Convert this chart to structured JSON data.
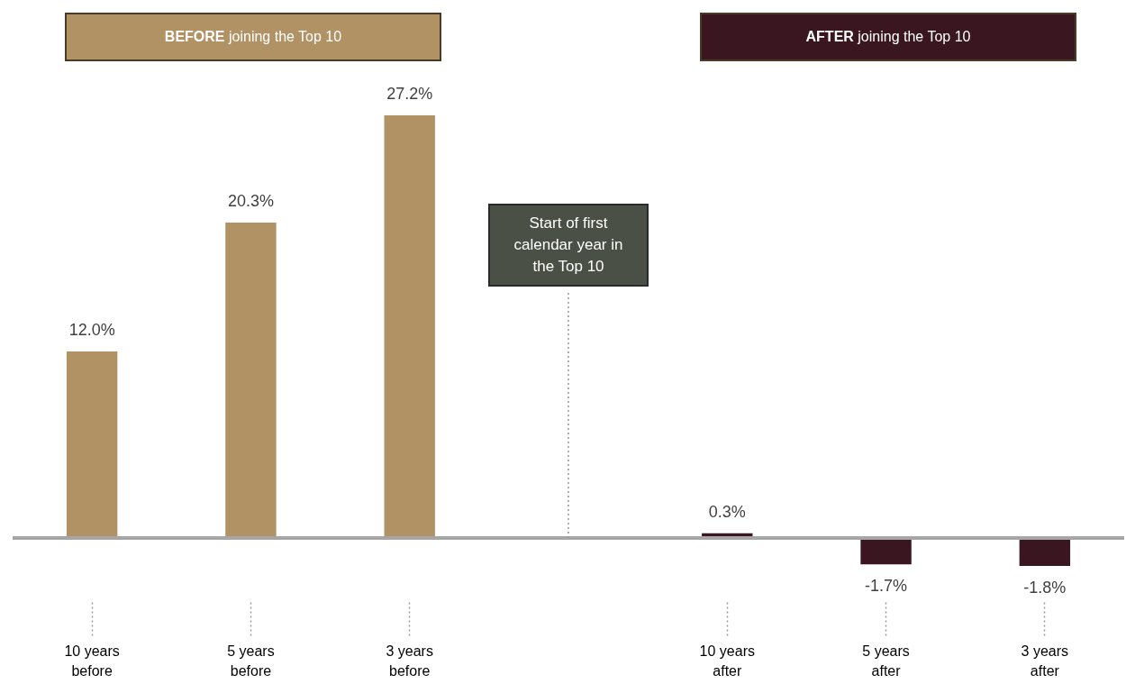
{
  "chart_data": {
    "type": "bar",
    "categories": [
      "10 years before",
      "5 years before",
      "3 years before",
      null,
      "10 years after",
      "5 years after",
      "3 years after"
    ],
    "values": [
      12.0,
      20.3,
      27.2,
      null,
      0.3,
      -1.7,
      -1.8
    ],
    "colors": [
      "#b09265",
      "#b09265",
      "#b09265",
      "#b09265",
      "#3a1620",
      "#3a1620",
      "#3a1620"
    ],
    "value_labels": [
      "12.0%",
      "20.3%",
      "27.2%",
      null,
      "0.3%",
      "-1.7%",
      "-1.8%"
    ],
    "annotations": [
      "BEFORE joining the Top 10",
      "AFTER joining the Top 10",
      "Start of first calendar year in the Top 10"
    ],
    "grid": false
  }
}
